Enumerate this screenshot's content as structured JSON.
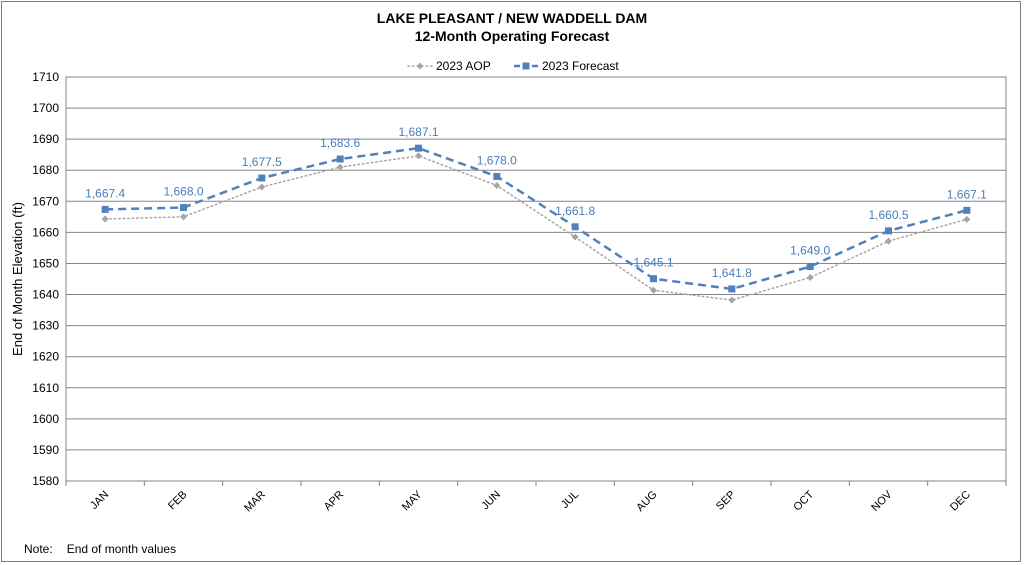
{
  "chart_data": {
    "type": "line",
    "title": "LAKE PLEASANT / NEW WADDELL DAM",
    "subtitle": "12-Month Operating Forecast",
    "ylabel": "End of Month Elevation (ft)",
    "xlabel": "",
    "ylim": [
      1580,
      1710
    ],
    "ytick_step": 10,
    "grid": true,
    "legend_position": "top",
    "categories": [
      "JAN",
      "FEB",
      "MAR",
      "APR",
      "MAY",
      "JUN",
      "JUL",
      "AUG",
      "SEP",
      "OCT",
      "NOV",
      "DEC"
    ],
    "series": [
      {
        "name": "2023 AOP",
        "color": "#a5a5a5",
        "style": "dotted",
        "marker": "diamond",
        "values": [
          1664.3,
          1665.0,
          1674.6,
          1681.0,
          1684.6,
          1675.1,
          1658.5,
          1641.4,
          1638.2,
          1645.5,
          1657.2,
          1664.2
        ]
      },
      {
        "name": "2023 Forecast",
        "color": "#4f81bd",
        "label_color": "#4a7ebb",
        "style": "dashed",
        "marker": "square",
        "values": [
          1667.4,
          1668.0,
          1677.5,
          1683.6,
          1687.1,
          1678.0,
          1661.8,
          1645.1,
          1641.8,
          1649.0,
          1660.5,
          1667.1
        ],
        "data_labels": [
          "1,667.4",
          "1,668.0",
          "1,677.5",
          "1,683.6",
          "1,687.1",
          "1,678.0",
          "1,661.8",
          "1,645.1",
          "1,641.8",
          "1,649.0",
          "1,660.5",
          "1,667.1"
        ]
      }
    ]
  },
  "note": {
    "label": "Note:",
    "text": "End of month values"
  }
}
